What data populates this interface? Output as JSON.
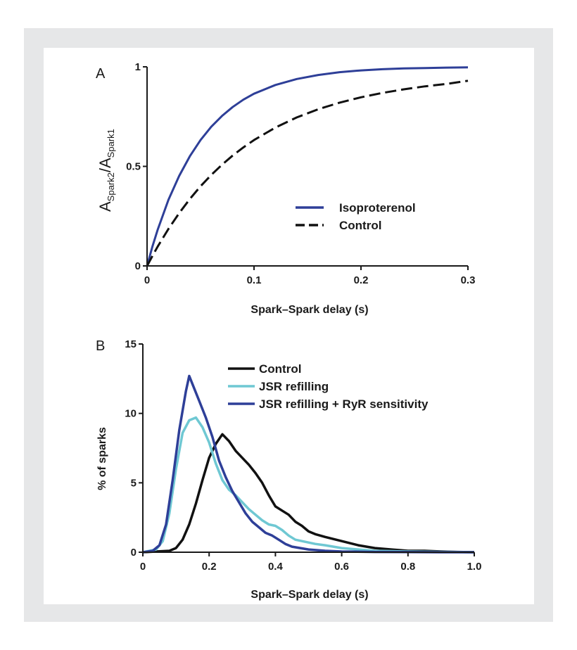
{
  "chart_data": [
    {
      "panel": "A",
      "type": "line",
      "xlabel": "Spark–Spark delay (s)",
      "ylabel": {
        "main": "A",
        "sub1": "Spark2",
        "sep": "/A",
        "sub2": "Spark1"
      },
      "xlim": [
        0,
        0.3
      ],
      "ylim": [
        0,
        1
      ],
      "xticks": [
        0,
        0.1,
        0.2,
        0.3
      ],
      "xtick_labels": [
        "0",
        "0.1",
        "0.2",
        "0.3"
      ],
      "yticks": [
        0,
        0.5,
        1
      ],
      "ytick_labels": [
        "0",
        "0.5",
        "1"
      ],
      "grid": false,
      "legend_position": "center-right",
      "series": [
        {
          "name": "Isoproterenol",
          "color": "#2e3f98",
          "dash": "solid",
          "x": [
            0,
            0.005,
            0.01,
            0.02,
            0.03,
            0.04,
            0.05,
            0.06,
            0.07,
            0.08,
            0.09,
            0.1,
            0.12,
            0.14,
            0.16,
            0.18,
            0.2,
            0.22,
            0.24,
            0.26,
            0.28,
            0.3
          ],
          "y": [
            0,
            0.097,
            0.183,
            0.332,
            0.452,
            0.551,
            0.632,
            0.699,
            0.753,
            0.798,
            0.835,
            0.865,
            0.909,
            0.939,
            0.959,
            0.973,
            0.982,
            0.988,
            0.992,
            0.994,
            0.996,
            0.997
          ]
        },
        {
          "name": "Control",
          "color": "#111111",
          "dash": "dashed",
          "x": [
            0,
            0.005,
            0.01,
            0.02,
            0.03,
            0.04,
            0.05,
            0.06,
            0.07,
            0.08,
            0.09,
            0.1,
            0.12,
            0.14,
            0.16,
            0.18,
            0.2,
            0.22,
            0.24,
            0.26,
            0.28,
            0.3
          ],
          "y": [
            0,
            0.05,
            0.098,
            0.186,
            0.265,
            0.336,
            0.4,
            0.457,
            0.508,
            0.554,
            0.595,
            0.632,
            0.695,
            0.746,
            0.787,
            0.82,
            0.847,
            0.869,
            0.887,
            0.902,
            0.914,
            0.93
          ]
        }
      ]
    },
    {
      "panel": "B",
      "type": "line",
      "xlabel": "Spark–Spark delay (s)",
      "ylabel": "% of sparks",
      "xlim": [
        0,
        1.0
      ],
      "ylim": [
        0,
        15
      ],
      "xticks": [
        0,
        0.2,
        0.4,
        0.6,
        0.8,
        1.0
      ],
      "xtick_labels": [
        "0",
        "0.2",
        "0.4",
        "0.6",
        "0.8",
        "1.0"
      ],
      "yticks": [
        0,
        5,
        10,
        15
      ],
      "ytick_labels": [
        "0",
        "5",
        "10",
        "15"
      ],
      "grid": false,
      "legend_position": "top-right",
      "series": [
        {
          "name": "Control",
          "color": "#111111",
          "dash": "solid",
          "x": [
            0,
            0.08,
            0.1,
            0.12,
            0.14,
            0.16,
            0.18,
            0.2,
            0.22,
            0.24,
            0.26,
            0.28,
            0.3,
            0.32,
            0.34,
            0.36,
            0.38,
            0.4,
            0.42,
            0.44,
            0.46,
            0.48,
            0.5,
            0.52,
            0.55,
            0.6,
            0.65,
            0.7,
            0.75,
            0.8,
            0.85,
            0.9,
            0.95,
            1.0
          ],
          "y": [
            0,
            0.1,
            0.3,
            0.9,
            2.0,
            3.5,
            5.2,
            6.8,
            7.8,
            8.5,
            8.0,
            7.3,
            6.8,
            6.3,
            5.7,
            5.0,
            4.1,
            3.3,
            3.0,
            2.7,
            2.2,
            1.9,
            1.5,
            1.3,
            1.1,
            0.8,
            0.5,
            0.3,
            0.2,
            0.1,
            0.1,
            0.05,
            0.02,
            0
          ]
        },
        {
          "name": "JSR refilling",
          "color": "#6fc8d3",
          "dash": "solid",
          "x": [
            0,
            0.04,
            0.06,
            0.08,
            0.1,
            0.12,
            0.14,
            0.16,
            0.18,
            0.2,
            0.22,
            0.24,
            0.26,
            0.28,
            0.3,
            0.32,
            0.34,
            0.36,
            0.38,
            0.4,
            0.42,
            0.44,
            0.46,
            0.48,
            0.5,
            0.52,
            0.55,
            0.6,
            0.65,
            0.7,
            0.8,
            0.9,
            1.0
          ],
          "y": [
            0,
            0.2,
            0.8,
            2.8,
            6.0,
            8.6,
            9.5,
            9.7,
            9.0,
            7.9,
            6.4,
            5.2,
            4.5,
            4.1,
            3.6,
            3.1,
            2.7,
            2.3,
            2.0,
            1.9,
            1.6,
            1.2,
            0.9,
            0.8,
            0.7,
            0.6,
            0.5,
            0.3,
            0.2,
            0.1,
            0.05,
            0.02,
            0
          ]
        },
        {
          "name": "JSR refilling + RyR sensitivity",
          "color": "#2e3f98",
          "dash": "solid",
          "x": [
            0,
            0.03,
            0.05,
            0.07,
            0.09,
            0.11,
            0.13,
            0.14,
            0.15,
            0.17,
            0.19,
            0.21,
            0.23,
            0.25,
            0.27,
            0.29,
            0.31,
            0.33,
            0.35,
            0.37,
            0.39,
            0.41,
            0.43,
            0.45,
            0.5,
            0.55,
            0.6,
            0.7,
            0.8,
            0.9,
            1.0
          ],
          "y": [
            0,
            0.1,
            0.5,
            2.0,
            5.2,
            8.8,
            11.6,
            12.7,
            12.1,
            10.9,
            9.7,
            8.3,
            6.6,
            5.4,
            4.4,
            3.6,
            2.8,
            2.2,
            1.8,
            1.4,
            1.2,
            0.9,
            0.6,
            0.4,
            0.2,
            0.1,
            0.05,
            0.02,
            0.01,
            0,
            0
          ]
        }
      ]
    }
  ]
}
